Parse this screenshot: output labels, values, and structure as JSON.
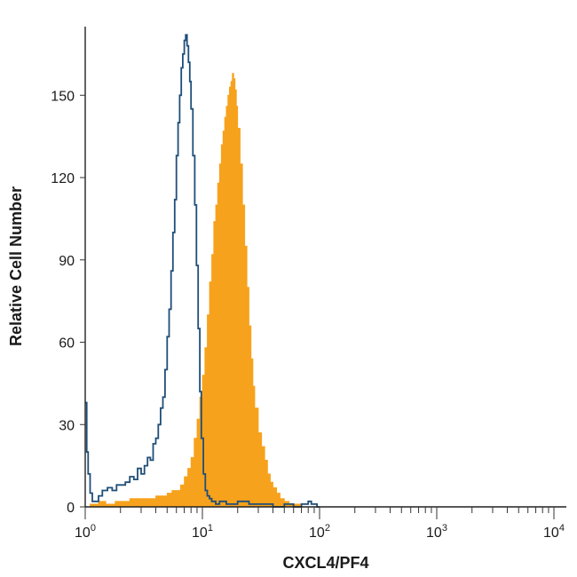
{
  "chart_data": {
    "type": "area",
    "title": "",
    "xlabel": "CXCL4/PF4",
    "ylabel": "Relative Cell Number",
    "x_scale": "log",
    "xlim": [
      1,
      10000
    ],
    "ylim": [
      0,
      175
    ],
    "grid": false,
    "x_ticks": [
      {
        "value": 1,
        "base": "10",
        "exp": "0"
      },
      {
        "value": 10,
        "base": "10",
        "exp": "1"
      },
      {
        "value": 100,
        "base": "10",
        "exp": "2"
      },
      {
        "value": 1000,
        "base": "10",
        "exp": "3"
      },
      {
        "value": 10000,
        "base": "10",
        "exp": "4"
      }
    ],
    "y_ticks": [
      {
        "value": 0,
        "label": "0"
      },
      {
        "value": 30,
        "label": "30"
      },
      {
        "value": 60,
        "label": "60"
      },
      {
        "value": 90,
        "label": "90"
      },
      {
        "value": 120,
        "label": "120"
      },
      {
        "value": 150,
        "label": "150"
      }
    ],
    "series": [
      {
        "style": "outline",
        "color": "#1f4e79",
        "x": [
          1.0,
          1.03,
          1.06,
          1.1,
          1.15,
          1.2,
          1.3,
          1.4,
          1.55,
          1.7,
          1.85,
          2.0,
          2.2,
          2.4,
          2.6,
          2.8,
          3.0,
          3.2,
          3.4,
          3.6,
          3.8,
          4.0,
          4.2,
          4.4,
          4.6,
          4.8,
          5.0,
          5.2,
          5.4,
          5.6,
          5.8,
          6.0,
          6.2,
          6.4,
          6.6,
          6.8,
          7.0,
          7.2,
          7.4,
          7.6,
          7.8,
          8.0,
          8.3,
          8.6,
          8.9,
          9.2,
          9.5,
          9.8,
          10.2,
          10.6,
          11.0,
          11.5,
          12.0,
          13.0,
          14.0,
          16.0,
          18.0,
          20.0,
          25.0,
          30.0,
          40.0,
          50.0,
          60.0,
          70.0,
          80.0,
          85.0,
          90.0,
          95.0,
          100.0
        ],
        "values": [
          38,
          20,
          12,
          5,
          2,
          2,
          4,
          6,
          7,
          6,
          8,
          8,
          9,
          11,
          10,
          14,
          12,
          15,
          18,
          17,
          23,
          25,
          30,
          36,
          40,
          50,
          62,
          72,
          86,
          100,
          112,
          128,
          140,
          150,
          160,
          165,
          170,
          172,
          168,
          162,
          155,
          145,
          128,
          110,
          88,
          65,
          42,
          25,
          12,
          6,
          4,
          3,
          2,
          1,
          2,
          1,
          1,
          2,
          1,
          1,
          0,
          1,
          0,
          1,
          2,
          1,
          1,
          0,
          0
        ]
      },
      {
        "style": "filled",
        "color": "#f7a21c",
        "x": [
          1.0,
          1.1,
          1.3,
          1.5,
          1.8,
          2.0,
          2.4,
          2.8,
          3.2,
          3.6,
          4.0,
          4.5,
          5.0,
          5.5,
          6.0,
          6.5,
          7.0,
          7.5,
          8.0,
          8.5,
          9.0,
          9.5,
          10.0,
          10.5,
          11.0,
          11.5,
          12.0,
          12.5,
          13.0,
          13.5,
          14.0,
          14.5,
          15.0,
          15.5,
          16.0,
          16.5,
          17.0,
          17.5,
          18.0,
          18.5,
          19.0,
          19.5,
          20.0,
          21.0,
          22.0,
          23.0,
          24.0,
          25.0,
          26.0,
          27.0,
          28.0,
          30.0,
          32.0,
          34.0,
          36.0,
          38.0,
          40.0,
          43.0,
          46.0,
          50.0,
          55.0,
          60.0,
          70.0,
          80.0
        ],
        "values": [
          0,
          1,
          2,
          1,
          2,
          2,
          3,
          3,
          3,
          3,
          4,
          4,
          5,
          6,
          6,
          8,
          11,
          14,
          18,
          25,
          32,
          40,
          48,
          58,
          70,
          82,
          92,
          104,
          110,
          118,
          125,
          132,
          137,
          142,
          146,
          150,
          153,
          155,
          158,
          156,
          152,
          146,
          138,
          125,
          110,
          95,
          80,
          66,
          54,
          44,
          36,
          27,
          22,
          17,
          12,
          9,
          7,
          5,
          3,
          2,
          1,
          1,
          0,
          0
        ]
      }
    ]
  }
}
